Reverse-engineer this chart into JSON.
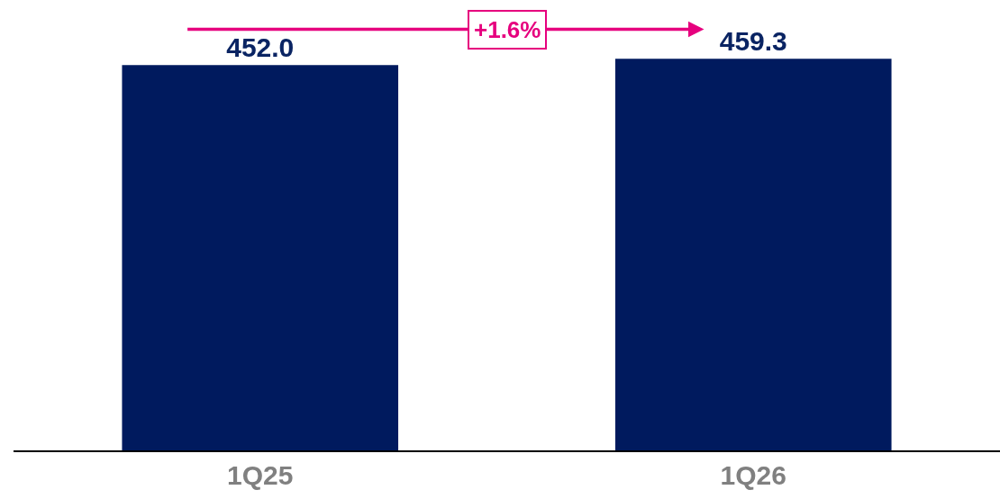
{
  "chart_data": {
    "type": "bar",
    "categories": [
      "1Q25",
      "1Q26"
    ],
    "values": [
      452.0,
      459.3
    ],
    "value_labels": [
      "452.0",
      "459.3"
    ],
    "color": "#001a5e",
    "annotations": [
      "+1.6%"
    ]
  }
}
